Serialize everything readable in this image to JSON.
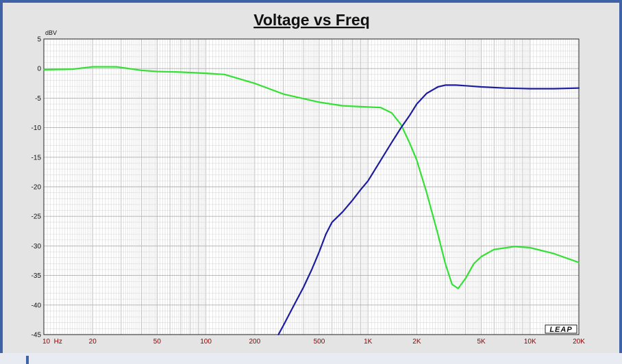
{
  "chart_data": {
    "type": "line",
    "title": "Voltage vs Freq",
    "y_unit": "dBV",
    "xscale": "log",
    "xlim": [
      10,
      20000
    ],
    "ylim": [
      -45,
      5
    ],
    "grid": true,
    "y_ticks": [
      5,
      0,
      -5,
      -10,
      -15,
      -20,
      -25,
      -30,
      -35,
      -40,
      -45
    ],
    "x_ticks": [
      {
        "value": 10,
        "label": "10  Hz"
      },
      {
        "value": 20,
        "label": "20"
      },
      {
        "value": 50,
        "label": "50"
      },
      {
        "value": 100,
        "label": "100"
      },
      {
        "value": 200,
        "label": "200"
      },
      {
        "value": 500,
        "label": "500"
      },
      {
        "value": 1000,
        "label": "1K"
      },
      {
        "value": 2000,
        "label": "2K"
      },
      {
        "value": 5000,
        "label": "5K"
      },
      {
        "value": 10000,
        "label": "10K"
      },
      {
        "value": 20000,
        "label": "20K"
      }
    ],
    "series": [
      {
        "color": "#33e033",
        "x": [
          10,
          15,
          20,
          28,
          40,
          50,
          70,
          100,
          130,
          200,
          300,
          500,
          700,
          1000,
          1200,
          1400,
          1600,
          1800,
          2000,
          2300,
          2700,
          3000,
          3300,
          3600,
          4000,
          4500,
          5000,
          6000,
          8000,
          10000,
          14000,
          20000
        ],
        "y": [
          -0.2,
          -0.1,
          0.3,
          0.3,
          -0.3,
          -0.5,
          -0.6,
          -0.8,
          -1.0,
          -2.5,
          -4.3,
          -5.7,
          -6.3,
          -6.5,
          -6.6,
          -7.5,
          -9.5,
          -12.5,
          -15.5,
          -21,
          -28,
          -33,
          -36.5,
          -37.2,
          -35.5,
          -33,
          -31.8,
          -30.6,
          -30.1,
          -30.3,
          -31.3,
          -32.8
        ]
      },
      {
        "color": "#1c1ca0",
        "x": [
          280,
          300,
          350,
          400,
          450,
          500,
          550,
          600,
          700,
          800,
          900,
          1000,
          1200,
          1400,
          1600,
          1800,
          2000,
          2300,
          2700,
          3000,
          3500,
          4000,
          5000,
          7000,
          10000,
          14000,
          20000
        ],
        "y": [
          -45,
          -43.5,
          -40,
          -37,
          -34,
          -31,
          -28,
          -26,
          -24.2,
          -22.3,
          -20.5,
          -19,
          -15.5,
          -12.5,
          -10,
          -8,
          -6,
          -4.2,
          -3.1,
          -2.8,
          -2.8,
          -2.9,
          -3.1,
          -3.3,
          -3.4,
          -3.4,
          -3.3
        ]
      }
    ]
  },
  "watermark": "LEAP"
}
